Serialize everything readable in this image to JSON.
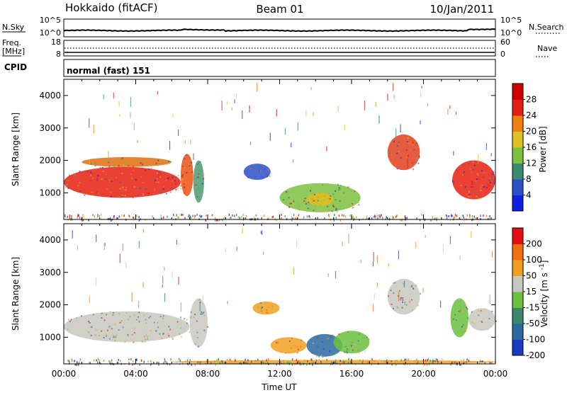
{
  "header": {
    "title": "Hokkaido (fitACF)",
    "beam": "Beam 01",
    "date": "10/Jan/2011"
  },
  "strip_panels": {
    "nsky": {
      "label": "N.Sky",
      "ticks": [
        "10^5",
        "10^0"
      ],
      "right_ticks": [
        "10^5",
        "10^0"
      ],
      "right_label": "N.Search"
    },
    "freq": {
      "label_lines": [
        "Freq.",
        "[MHz]"
      ],
      "ticks": [
        "18",
        "8"
      ],
      "right_ticks": [
        "60",
        "0"
      ],
      "right_label": "Nave"
    },
    "cpid": {
      "label": "CPID",
      "text": "normal (fast) 151"
    }
  },
  "chart_data": [
    {
      "type": "heatmap",
      "name": "Power",
      "ylabel": "Slant Range [km]",
      "xlabel": "Time UT",
      "x_ticks": [
        "00:00",
        "04:00",
        "08:00",
        "12:00",
        "16:00",
        "20:00",
        "00:00"
      ],
      "xlim_hours": [
        0,
        24
      ],
      "y_ticks": [
        1000,
        2000,
        3000,
        4000
      ],
      "ylim": [
        180,
        4500
      ],
      "colorbar": {
        "label": "Power [dB]",
        "ticks": [
          "4",
          "8",
          "12",
          "16",
          "20",
          "24",
          "28"
        ],
        "colors": [
          "#1020e0",
          "#2a50c8",
          "#3a8a70",
          "#7cc040",
          "#e0c020",
          "#f08010",
          "#e02010",
          "#d00000"
        ]
      },
      "regions": [
        {
          "t0": 0.0,
          "t1": 6.5,
          "r0": 850,
          "r1": 1800,
          "color": "#e82010"
        },
        {
          "t0": 6.5,
          "t1": 7.2,
          "r0": 900,
          "r1": 2200,
          "color": "#f05010"
        },
        {
          "t0": 1.0,
          "t1": 6.0,
          "r0": 1800,
          "r1": 2100,
          "color": "#e07010"
        },
        {
          "t0": 7.2,
          "t1": 7.8,
          "r0": 700,
          "r1": 2000,
          "color": "#4a9a70"
        },
        {
          "t0": 10.0,
          "t1": 11.5,
          "r0": 1400,
          "r1": 1900,
          "color": "#2a50c8"
        },
        {
          "t0": 12.0,
          "t1": 16.5,
          "r0": 400,
          "r1": 1300,
          "color": "#7cc040"
        },
        {
          "t0": 13.5,
          "t1": 15.0,
          "r0": 600,
          "r1": 1000,
          "color": "#e0c020"
        },
        {
          "t0": 18.0,
          "t1": 19.8,
          "r0": 1700,
          "r1": 2800,
          "color": "#e04020"
        },
        {
          "t0": 21.6,
          "t1": 24.0,
          "r0": 800,
          "r1": 2000,
          "color": "#e82010"
        }
      ]
    },
    {
      "type": "heatmap",
      "name": "Velocity",
      "ylabel": "Slant Range [km]",
      "xlabel": "Time UT",
      "x_ticks": [
        "00:00",
        "04:00",
        "08:00",
        "12:00",
        "16:00",
        "20:00",
        "00:00"
      ],
      "xlim_hours": [
        0,
        24
      ],
      "y_ticks": [
        1000,
        2000,
        3000,
        4000
      ],
      "ylim": [
        180,
        4500
      ],
      "colorbar": {
        "label": "Velocity [m s^-1]",
        "ticks": [
          "200",
          "100",
          "50",
          "15",
          "-15",
          "-50",
          "-100",
          "-200"
        ],
        "colors": [
          "#1a3ac0",
          "#2a6aa0",
          "#3a8a6a",
          "#6cc040",
          "#c8c8c0",
          "#f0a020",
          "#f07010",
          "#e01010"
        ]
      },
      "regions": [
        {
          "t0": 0.0,
          "t1": 7.0,
          "r0": 850,
          "r1": 1800,
          "color": "#c8c8c0"
        },
        {
          "t0": 7.0,
          "t1": 8.0,
          "r0": 700,
          "r1": 2200,
          "color": "#c8c8c0"
        },
        {
          "t0": 10.5,
          "t1": 12.0,
          "r0": 1700,
          "r1": 2100,
          "color": "#f0a020"
        },
        {
          "t0": 11.5,
          "t1": 13.5,
          "r0": 500,
          "r1": 1000,
          "color": "#f0a020"
        },
        {
          "t0": 13.5,
          "t1": 15.5,
          "r0": 400,
          "r1": 1100,
          "color": "#2a6aa0"
        },
        {
          "t0": 15.0,
          "t1": 17.0,
          "r0": 500,
          "r1": 1200,
          "color": "#6cc040"
        },
        {
          "t0": 18.0,
          "t1": 19.8,
          "r0": 1700,
          "r1": 2800,
          "color": "#c8c8c0"
        },
        {
          "t0": 21.5,
          "t1": 22.5,
          "r0": 1000,
          "r1": 2200,
          "color": "#6cc040"
        },
        {
          "t0": 22.5,
          "t1": 24.0,
          "r0": 1200,
          "r1": 1900,
          "color": "#c8c8c0"
        },
        {
          "t0": 6.0,
          "t1": 24.0,
          "r0": 180,
          "r1": 300,
          "color": "#f0a020"
        }
      ]
    }
  ]
}
